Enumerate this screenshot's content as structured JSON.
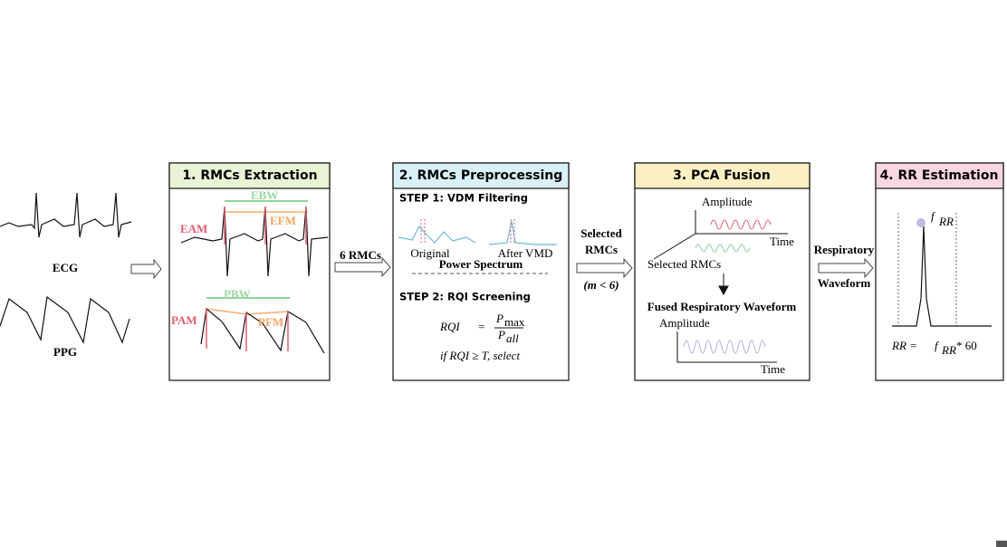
{
  "inputs": {
    "ecg": "ECG",
    "ppg": "PPG"
  },
  "arrows": {
    "first": "6 RMCs",
    "second": [
      "Selected",
      "RMCs"
    ],
    "second_note": "(m < 6)",
    "third": [
      "Respiratory",
      "Waveform"
    ]
  },
  "panel1": {
    "title": "1. RMCs Extraction",
    "labels": {
      "ebw": "EBW",
      "eam": "EAM",
      "efm": "EFM",
      "pbw": "PBW",
      "pam": "PAM",
      "pfm": "PFM"
    }
  },
  "panel2": {
    "title": "2. RMCs Preprocessing",
    "step1": "STEP 1: VDM Filtering",
    "original": "Original",
    "after": "After VMD",
    "spectrum": "Power Spectrum",
    "step2": "STEP 2: RQI Screening",
    "formula": {
      "lhs": "RQI",
      "eq": "=",
      "num": "P",
      "num_sub": "max",
      "den": "P",
      "den_sub": "all"
    },
    "condition": "if RQI ≥ T, select"
  },
  "panel3": {
    "title": "3. PCA Fusion",
    "amplitude": "Amplitude",
    "time": "Time",
    "selected": "Selected RMCs",
    "fused": "Fused Respiratory Waveform",
    "amplitude2": "Amplitude",
    "time2": "Time"
  },
  "panel4": {
    "title": "4. RR Estimation",
    "peak": {
      "f": "f",
      "sub": "RR"
    },
    "formula": {
      "lhs": "RR =",
      "f": "f",
      "sub": "RR",
      "rest": "* 60"
    }
  }
}
